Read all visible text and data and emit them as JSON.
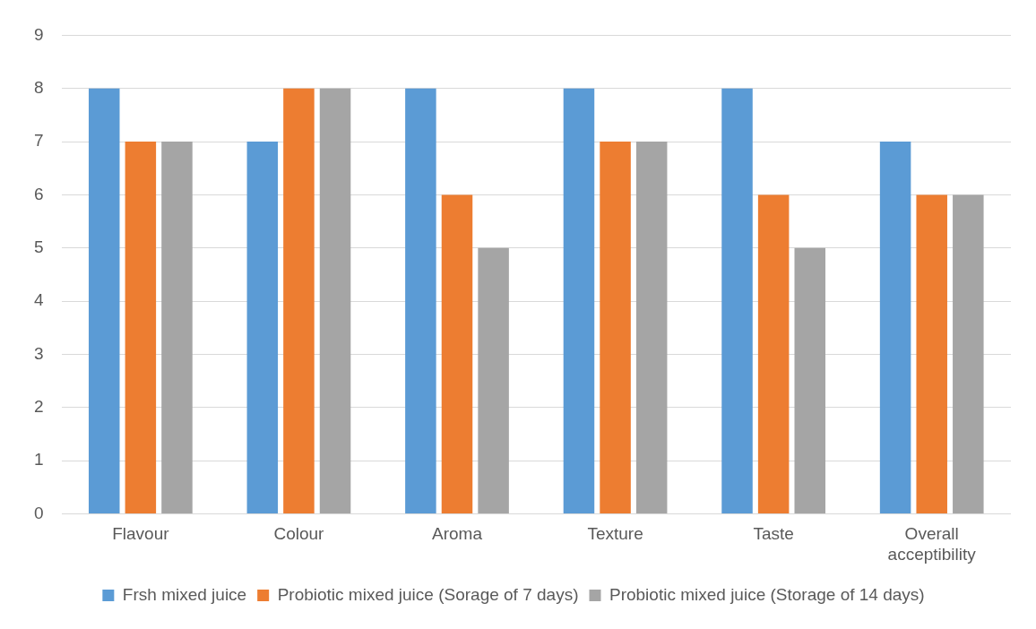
{
  "chart_data": {
    "type": "bar",
    "categories": [
      "Flavour",
      "Colour",
      "Aroma",
      "Texture",
      "Taste",
      "Overall acceptibility"
    ],
    "series": [
      {
        "name": "Frsh mixed juice",
        "color": "#5b9bd5",
        "values": [
          8,
          7,
          8,
          8,
          8,
          7
        ]
      },
      {
        "name": "Probiotic mixed juice (Sorage of 7 days)",
        "color": "#ed7d31",
        "values": [
          7,
          8,
          6,
          7,
          6,
          6
        ]
      },
      {
        "name": "Probiotic mixed juice (Storage of 14 days)",
        "color": "#a5a5a5",
        "values": [
          7,
          8,
          5,
          7,
          5,
          6
        ]
      }
    ],
    "ylim": [
      0,
      9
    ],
    "yticks": [
      0,
      1,
      2,
      3,
      4,
      5,
      6,
      7,
      8,
      9
    ],
    "grid": "y",
    "legend": "bottom"
  }
}
